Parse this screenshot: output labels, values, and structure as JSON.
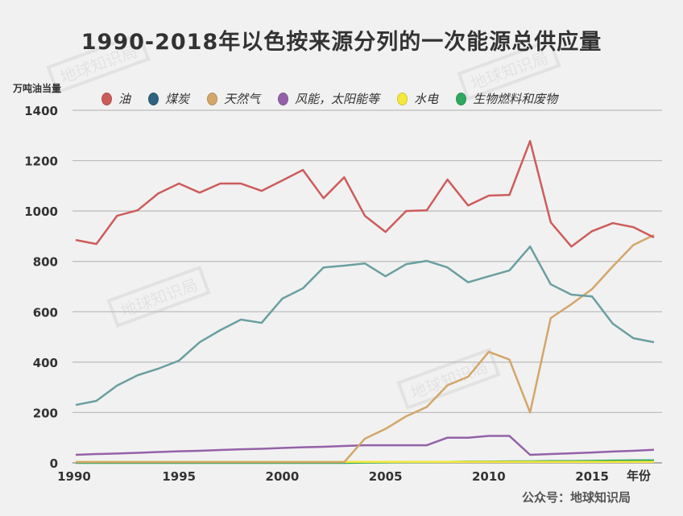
{
  "chart_data": {
    "type": "line",
    "title": "1990-2018年以色按来源分列的一次能源总供应量",
    "ylabel": "万吨油当量",
    "xlabel": "年份",
    "ylim": [
      0,
      1400
    ],
    "yticks": [
      0,
      200,
      400,
      600,
      800,
      1000,
      1200,
      1400
    ],
    "xlim": [
      1990,
      2018
    ],
    "xticks": [
      1990,
      1995,
      2000,
      2005,
      2010,
      2015
    ],
    "grid": "horizontal",
    "legend": "top",
    "x": [
      1990,
      1991,
      1992,
      1993,
      1994,
      1995,
      1996,
      1997,
      1998,
      1999,
      2000,
      2001,
      2002,
      2003,
      2004,
      2005,
      2006,
      2007,
      2008,
      2009,
      2010,
      2011,
      2012,
      2013,
      2014,
      2015,
      2016,
      2017,
      2018
    ],
    "series": [
      {
        "name": "油",
        "color": "#cd5c5c",
        "values": [
          885,
          869,
          981,
          1003,
          1070,
          1109,
          1073,
          1109,
          1109,
          1080,
          1121,
          1163,
          1051,
          1134,
          981,
          917,
          1000,
          1003,
          1125,
          1022,
          1061,
          1064,
          1278,
          955,
          859,
          920,
          952,
          936,
          895
        ]
      },
      {
        "name": "煤炭",
        "color": "#6a9fa0",
        "legend_color": "#2e6480",
        "values": [
          230,
          246,
          307,
          348,
          374,
          406,
          479,
          527,
          569,
          556,
          652,
          693,
          776,
          783,
          792,
          741,
          789,
          802,
          776,
          717,
          741,
          764,
          859,
          709,
          668,
          661,
          553,
          495,
          479
        ]
      },
      {
        "name": "天然气",
        "color": "#d4a66a",
        "values": [
          3,
          3,
          3,
          3,
          3,
          3,
          3,
          3,
          3,
          3,
          3,
          3,
          3,
          3,
          96,
          135,
          185,
          222,
          308,
          342,
          441,
          410,
          200,
          575,
          630,
          690,
          780,
          865,
          905
        ]
      },
      {
        "name": "风能，太阳能等",
        "color": "#9461a8",
        "values": [
          32,
          35,
          37,
          40,
          43,
          46,
          48,
          51,
          54,
          56,
          59,
          62,
          64,
          67,
          70,
          70,
          70,
          70,
          100,
          100,
          107,
          107,
          32,
          35,
          38,
          41,
          45,
          48,
          52
        ]
      },
      {
        "name": "水电",
        "color": "#f5e83a",
        "values": [
          4,
          4,
          4,
          4,
          4,
          4,
          4,
          4,
          4,
          4,
          4,
          4,
          4,
          4,
          4,
          4,
          4,
          4,
          4,
          4,
          4,
          4,
          4,
          4,
          4,
          4,
          4,
          4,
          4
        ]
      },
      {
        "name": "生物燃料和废物",
        "color": "#2ea860",
        "values": [
          0,
          0,
          0,
          0,
          0,
          0,
          0,
          0,
          0,
          0,
          0,
          0,
          0,
          0,
          1,
          2,
          3,
          3,
          4,
          5,
          5,
          6,
          6,
          7,
          7,
          8,
          9,
          10,
          10
        ]
      }
    ]
  },
  "watermark": "地球知识局",
  "source": "公众号：地球知识局"
}
